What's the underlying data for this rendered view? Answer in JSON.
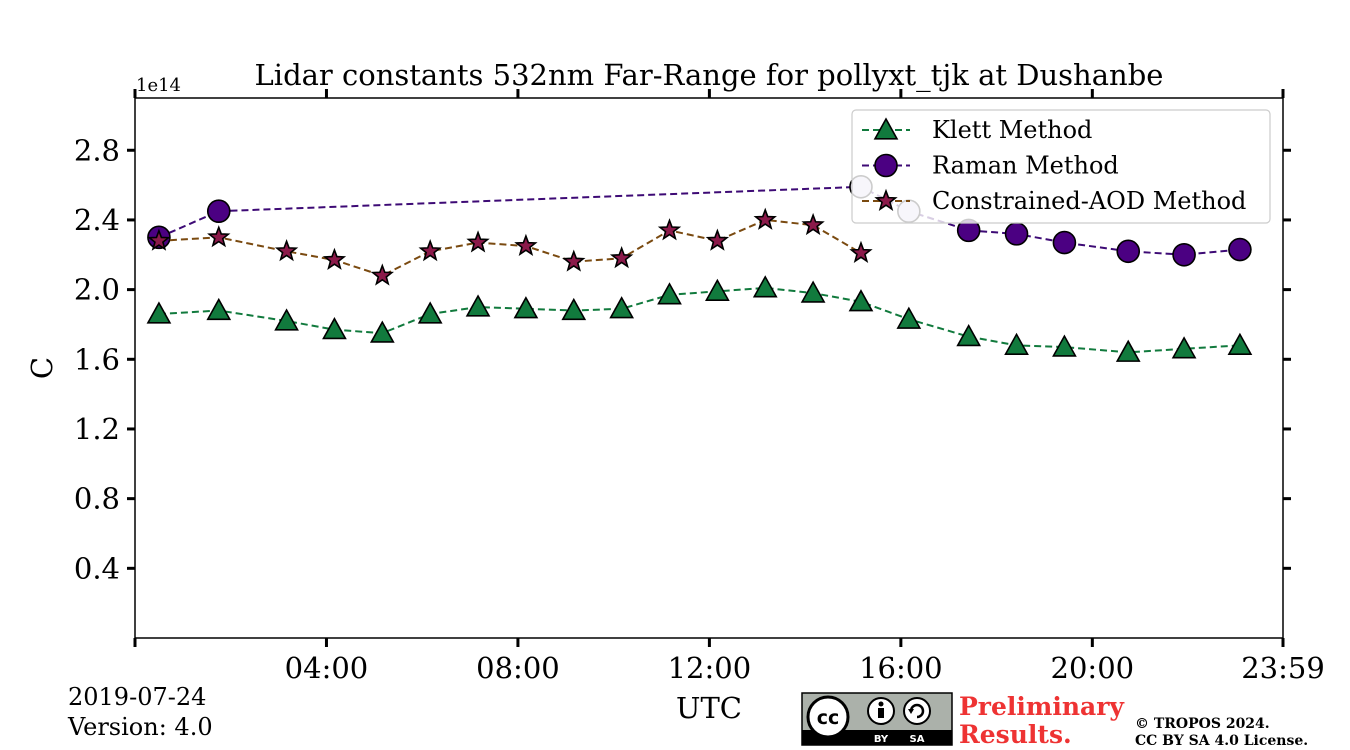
{
  "chart_data": {
    "type": "line",
    "title": "Lidar constants 532nm Far-Range for pollyxt_tjk at Dushanbe",
    "xlabel": "UTC",
    "ylabel": "C",
    "y_offset_label": "1e14",
    "y_scale": 100000000000000.0,
    "xlim": [
      "00:00",
      "23:59"
    ],
    "ylim": [
      0.0,
      3.1
    ],
    "xticks": [
      "04:00",
      "08:00",
      "12:00",
      "16:00",
      "20:00",
      "23:59"
    ],
    "yticks": [
      "0.4",
      "0.8",
      "1.2",
      "1.6",
      "2.0",
      "2.4",
      "2.8"
    ],
    "grid": false,
    "legend_position": "top-right",
    "series": [
      {
        "name": "Klett Method",
        "color": "#117a3d",
        "line_color": "#117a3d",
        "marker": "triangle",
        "x": [
          "00:30",
          "01:45",
          "03:10",
          "04:10",
          "05:10",
          "06:10",
          "07:10",
          "08:10",
          "09:10",
          "10:10",
          "11:10",
          "12:10",
          "13:10",
          "14:10",
          "15:10",
          "16:10",
          "17:25",
          "18:25",
          "19:25",
          "20:45",
          "21:55",
          "23:05"
        ],
        "values": [
          1.86,
          1.88,
          1.82,
          1.77,
          1.75,
          1.86,
          1.9,
          1.89,
          1.88,
          1.89,
          1.97,
          1.99,
          2.01,
          1.98,
          1.93,
          1.83,
          1.73,
          1.68,
          1.67,
          1.64,
          1.66,
          1.68
        ]
      },
      {
        "name": "Raman Method",
        "color": "#4b0082",
        "line_color": "#3d0a75",
        "marker": "circle",
        "x": [
          "00:30",
          "01:45",
          "15:10",
          "16:10",
          "17:25",
          "18:25",
          "19:25",
          "20:45",
          "21:55",
          "23:05"
        ],
        "values": [
          2.3,
          2.45,
          2.59,
          2.45,
          2.34,
          2.32,
          2.27,
          2.22,
          2.2,
          2.23
        ],
        "faded_points": [
          2,
          3
        ]
      },
      {
        "name": "Constrained-AOD Method",
        "color": "#8b1a4a",
        "line_color": "#7a4a10",
        "marker": "star",
        "x": [
          "00:30",
          "01:45",
          "03:10",
          "04:10",
          "05:10",
          "06:10",
          "07:10",
          "08:10",
          "09:10",
          "10:10",
          "11:10",
          "12:10",
          "13:10",
          "14:10",
          "15:10"
        ],
        "values": [
          2.28,
          2.3,
          2.22,
          2.17,
          2.08,
          2.22,
          2.27,
          2.25,
          2.16,
          2.18,
          2.34,
          2.28,
          2.4,
          2.37,
          2.21
        ]
      }
    ]
  },
  "footer": {
    "date": "2019-07-24",
    "version": "Version: 4.0",
    "preliminary_line1": "Preliminary",
    "preliminary_line2": "Results.",
    "copyright_line1": "© TROPOS 2024.",
    "copyright_line2": "CC BY SA 4.0 License.",
    "license_badge": {
      "cc": "cc",
      "by": "BY",
      "sa": "SA"
    }
  }
}
